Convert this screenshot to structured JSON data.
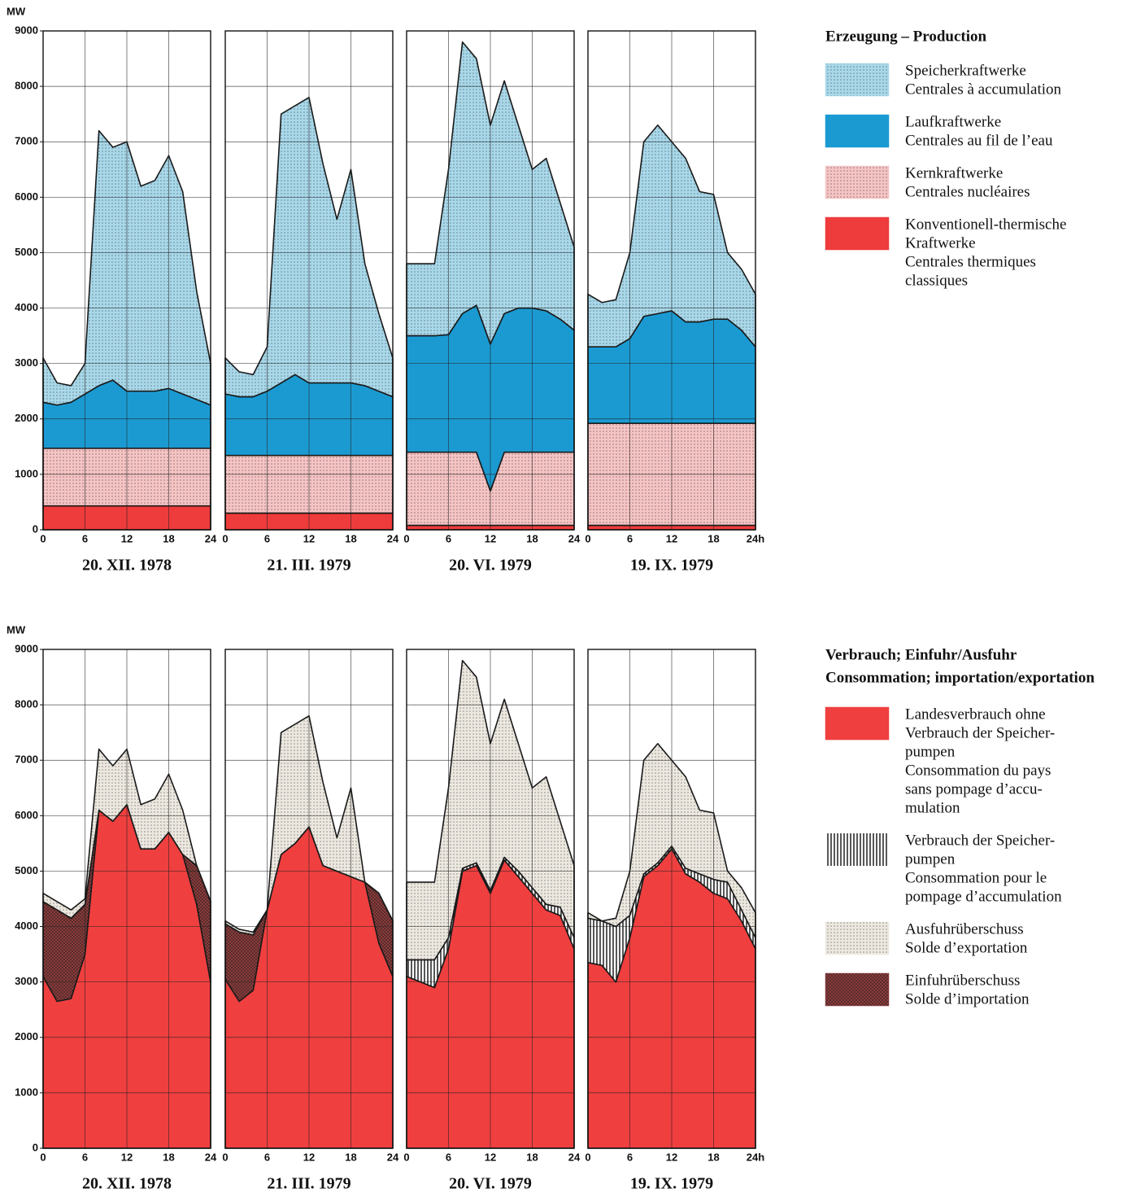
{
  "chart_data": [
    {
      "type": "stacked-area",
      "title": [
        "Erzeugung – Production"
      ],
      "y_label": "MW",
      "ylim": [
        0,
        9000
      ],
      "yticks": [
        0,
        1000,
        2000,
        3000,
        4000,
        5000,
        6000,
        7000,
        8000,
        9000
      ],
      "xlim": [
        0,
        24
      ],
      "x": [
        0,
        2,
        4,
        6,
        8,
        10,
        12,
        14,
        16,
        18,
        20,
        22,
        24
      ],
      "grid": true,
      "panels": [
        {
          "title": "20. XII. 1978",
          "xticks": [
            0,
            6,
            12,
            18,
            24
          ]
        },
        {
          "title": "21. III. 1979",
          "xticks": [
            0,
            6,
            12,
            18,
            24
          ]
        },
        {
          "title": "20. VI. 1979",
          "xticks": [
            0,
            6,
            12,
            18,
            24
          ]
        },
        {
          "title": "19. IX. 1979",
          "xticks": [
            0,
            6,
            12,
            18,
            {
              "value": 24,
              "label": "24h"
            }
          ]
        }
      ],
      "series": [
        {
          "name": [
            "Speicherkraftwerke",
            "Centrales à accumulation"
          ],
          "color": "#a8d8ea",
          "pattern": "dots",
          "values": [
            [
              800,
              400,
              300,
              550,
              4600,
              4200,
              4500,
              3700,
              3800,
              4200,
              3650,
              1950,
              750
            ],
            [
              650,
              450,
              400,
              800,
              4850,
              4850,
              5150,
              3950,
              2950,
              3850,
              2200,
              1400,
              700
            ],
            [
              1300,
              1300,
              1300,
              2980,
              4900,
              4450,
              3950,
              4200,
              3300,
              2500,
              2750,
              2100,
              1500
            ],
            [
              950,
              800,
              850,
              1550,
              3150,
              3400,
              3050,
              2950,
              2350,
              2250,
              1200,
              1100,
              950
            ]
          ]
        },
        {
          "name": [
            "Laufkraftwerke",
            "Centrales au fil de l’eau"
          ],
          "color": "#1b9ad2",
          "pattern": "solid",
          "values": [
            [
              830,
              780,
              830,
              980,
              1130,
              1230,
              1030,
              1030,
              1030,
              1080,
              980,
              880,
              780
            ],
            [
              1110,
              1060,
              1060,
              1160,
              1310,
              1460,
              1310,
              1310,
              1310,
              1310,
              1260,
              1160,
              1060
            ],
            [
              2100,
              2100,
              2100,
              2120,
              2500,
              2650,
              2650,
              2500,
              2600,
              2600,
              2550,
              2400,
              2200
            ],
            [
              1380,
              1380,
              1380,
              1530,
              1930,
              1980,
              2030,
              1830,
              1830,
              1880,
              1880,
              1680,
              1380
            ]
          ]
        },
        {
          "name": [
            "Kernkraftwerke",
            "Centrales nucléaires"
          ],
          "color": "#f6c4c4",
          "pattern": "dots",
          "values": [
            [
              1040,
              1040,
              1040,
              1040,
              1040,
              1040,
              1040,
              1040,
              1040,
              1040,
              1040,
              1040,
              1040
            ],
            [
              1040,
              1040,
              1040,
              1040,
              1040,
              1040,
              1040,
              1040,
              1040,
              1040,
              1040,
              1040,
              1040
            ],
            [
              1320,
              1320,
              1320,
              1320,
              1320,
              1320,
              620,
              1320,
              1320,
              1320,
              1320,
              1320,
              1320
            ],
            [
              1840,
              1840,
              1840,
              1840,
              1840,
              1840,
              1840,
              1840,
              1840,
              1840,
              1840,
              1840,
              1840
            ]
          ]
        },
        {
          "name": [
            "Konventionell-thermische",
            "Kraftwerke",
            "Centrales thermiques",
            "classiques"
          ],
          "color": "#ee3b3b",
          "pattern": "solid",
          "values": [
            [
              430,
              430,
              430,
              430,
              430,
              430,
              430,
              430,
              430,
              430,
              430,
              430,
              430
            ],
            [
              300,
              300,
              300,
              300,
              300,
              300,
              300,
              300,
              300,
              300,
              300,
              300,
              300
            ],
            [
              80,
              80,
              80,
              80,
              80,
              80,
              80,
              80,
              80,
              80,
              80,
              80,
              80
            ],
            [
              80,
              80,
              80,
              80,
              80,
              80,
              80,
              80,
              80,
              80,
              80,
              80,
              80
            ]
          ]
        }
      ]
    },
    {
      "type": "stacked-area",
      "title": [
        "Verbrauch; Einfuhr/Ausfuhr",
        "Consommation; importation/exportation"
      ],
      "y_label": "MW",
      "ylim": [
        0,
        9000
      ],
      "yticks": [
        0,
        1000,
        2000,
        3000,
        4000,
        5000,
        6000,
        7000,
        8000,
        9000
      ],
      "xlim": [
        0,
        24
      ],
      "x": [
        0,
        2,
        4,
        6,
        8,
        10,
        12,
        14,
        16,
        18,
        20,
        22,
        24
      ],
      "grid": true,
      "panels": [
        {
          "title": "20. XII. 1978",
          "xticks": [
            0,
            6,
            12,
            18,
            24
          ]
        },
        {
          "title": "21. III. 1979",
          "xticks": [
            0,
            6,
            12,
            18,
            24
          ]
        },
        {
          "title": "20. VI. 1979",
          "xticks": [
            0,
            6,
            12,
            18,
            24
          ]
        },
        {
          "title": "19. IX. 1979",
          "xticks": [
            0,
            6,
            12,
            18,
            {
              "value": 24,
              "label": "24h"
            }
          ]
        }
      ],
      "series": [
        {
          "name": [
            "Landesverbrauch ohne",
            "Verbrauch der Speicher-",
            "pumpen",
            "Consommation du pays",
            "sans pompage d’accu-",
            "mulation"
          ],
          "color": "#ef3f3f",
          "pattern": "solid",
          "values": [
            [
              3100,
              2650,
              2700,
              3500,
              6100,
              5900,
              6200,
              5400,
              5400,
              5700,
              5300,
              4400,
              3000
            ],
            [
              3050,
              2650,
              2850,
              4300,
              5300,
              5500,
              5800,
              5100,
              5000,
              4900,
              4800,
              3700,
              3100
            ],
            [
              3100,
              3000,
              2900,
              3600,
              5000,
              5100,
              4600,
              5200,
              4900,
              4600,
              4300,
              4200,
              3600
            ],
            [
              3350,
              3300,
              3000,
              3800,
              4900,
              5100,
              5400,
              4950,
              4800,
              4600,
              4500,
              4100,
              3600
            ]
          ]
        },
        {
          "name": [
            "Verbrauch der Speicher-",
            "pumpen",
            "Consommation pour le",
            "pompage d’accumulation"
          ],
          "color": "#ffffff",
          "pattern": "vlines",
          "values": [
            [
              0,
              0,
              0,
              0,
              0,
              0,
              0,
              0,
              0,
              0,
              0,
              0,
              0
            ],
            [
              0,
              0,
              0,
              0,
              0,
              0,
              0,
              0,
              0,
              0,
              0,
              0,
              0
            ],
            [
              300,
              400,
              500,
              200,
              50,
              50,
              50,
              50,
              100,
              100,
              100,
              150,
              200
            ],
            [
              800,
              800,
              1000,
              400,
              50,
              50,
              50,
              100,
              150,
              250,
              300,
              200,
              200
            ]
          ]
        },
        {
          "name": [
            "Ausfuhrüberschuss",
            "Solde d’exportation"
          ],
          "color": "#ece8e0",
          "pattern": "dots",
          "values": [
            [
              150,
              150,
              150,
              100,
              1100,
              1000,
              1000,
              800,
              900,
              1050,
              800,
              0,
              0
            ],
            [
              50,
              50,
              50,
              0,
              2200,
              2150,
              2000,
              1500,
              600,
              1600,
              0,
              0,
              0
            ],
            [
              1400,
              1400,
              1400,
              2700,
              3750,
              3350,
              2650,
              2850,
              2300,
              1800,
              2300,
              1550,
              1300
            ],
            [
              100,
              0,
              150,
              800,
              2050,
              2150,
              1550,
              1650,
              1150,
              1200,
              200,
              400,
              450
            ]
          ]
        },
        {
          "name": [
            "Einfuhrüberschuss",
            "Solde d’importation"
          ],
          "color": "#8b3b3b",
          "pattern": "cross",
          "values": [
            [
              1350,
              1650,
              1450,
              900,
              0,
              0,
              0,
              0,
              0,
              0,
              0,
              700,
              1450
            ],
            [
              1000,
              1250,
              1000,
              0,
              0,
              0,
              0,
              0,
              0,
              0,
              0,
              900,
              1000
            ],
            [
              0,
              0,
              0,
              0,
              0,
              0,
              0,
              0,
              0,
              0,
              0,
              0,
              0
            ],
            [
              0,
              0,
              0,
              0,
              0,
              0,
              0,
              0,
              0,
              0,
              0,
              0,
              0
            ]
          ]
        }
      ]
    }
  ]
}
